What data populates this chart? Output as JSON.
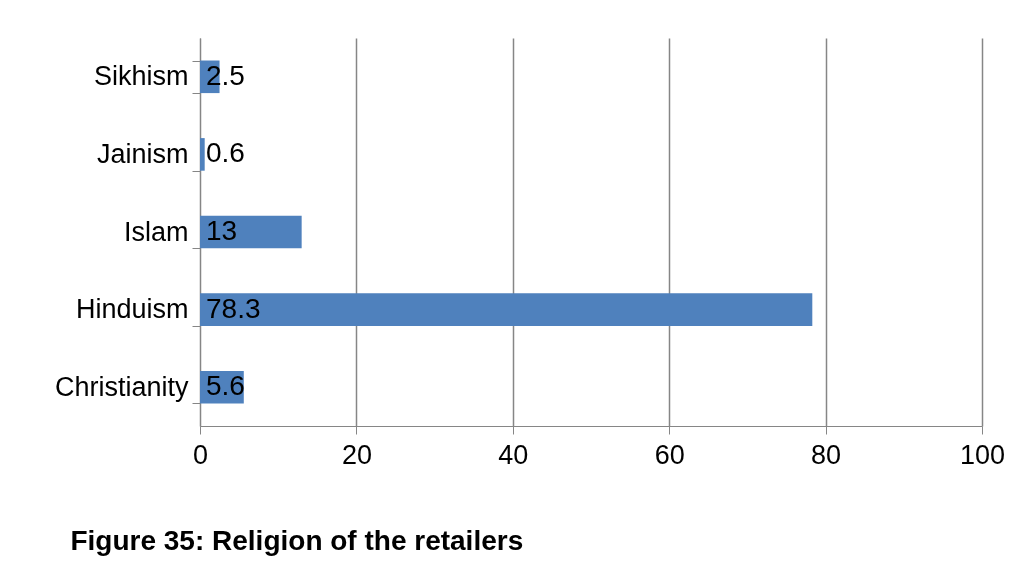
{
  "chart_data": {
    "type": "bar",
    "orientation": "horizontal",
    "title": "Figure 35: Religion of the retailers",
    "categories": [
      "Sikhism",
      "Jainism",
      "Islam",
      "Hinduism",
      "Christianity"
    ],
    "values": [
      2.5,
      0.6,
      13,
      78.3,
      5.6
    ],
    "color": "#4f81bd",
    "xlim": [
      0,
      100
    ],
    "xticks": [
      0,
      20,
      40,
      60,
      80,
      100
    ],
    "grid": "x",
    "data_labels": true
  }
}
